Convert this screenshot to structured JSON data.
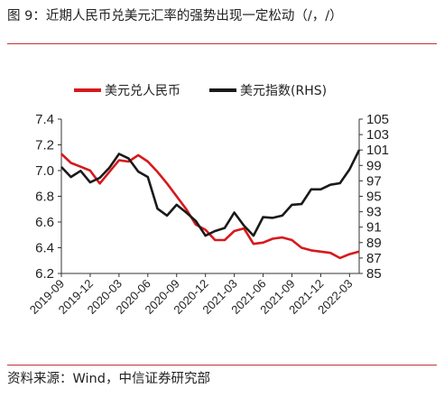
{
  "header": {
    "title": "图 9：近期人民币兑美元汇率的强势出现一定松动（/，/）"
  },
  "footer": {
    "source": "资料来源：Wind，中信证券研究部"
  },
  "colors": {
    "cny": "#d7191c",
    "dxy": "#1a1a1a",
    "rule": "#c0343c"
  },
  "chart_data": {
    "type": "line",
    "title": "",
    "legend_position": "top",
    "x_ticks": [
      "2019-09",
      "2019-12",
      "2020-03",
      "2020-06",
      "2020-09",
      "2020-12",
      "2021-03",
      "2021-06",
      "2021-09",
      "2021-12",
      "2022-03"
    ],
    "y_left": {
      "ticks": [
        "6.2",
        "6.4",
        "6.6",
        "6.8",
        "7.0",
        "7.2",
        "7.4"
      ],
      "range": [
        6.2,
        7.4
      ]
    },
    "y_right": {
      "ticks": [
        "85",
        "87",
        "89",
        "91",
        "93",
        "95",
        "97",
        "99",
        "101",
        "103",
        "105"
      ],
      "range": [
        85,
        105
      ],
      "label": "RHS"
    },
    "series": [
      {
        "name": "美元兑人民币",
        "axis": "left",
        "color": "#d7191c",
        "points": [
          [
            "2019-09",
            7.13
          ],
          [
            "2019-10",
            7.06
          ],
          [
            "2019-11",
            7.03
          ],
          [
            "2019-12",
            7.0
          ],
          [
            "2020-01",
            6.9
          ],
          [
            "2020-02",
            6.99
          ],
          [
            "2020-03",
            7.08
          ],
          [
            "2020-04",
            7.07
          ],
          [
            "2020-05",
            7.12
          ],
          [
            "2020-06",
            7.07
          ],
          [
            "2020-07",
            6.99
          ],
          [
            "2020-08",
            6.9
          ],
          [
            "2020-09",
            6.8
          ],
          [
            "2020-10",
            6.7
          ],
          [
            "2020-11",
            6.58
          ],
          [
            "2020-12",
            6.54
          ],
          [
            "2021-01",
            6.46
          ],
          [
            "2021-02",
            6.46
          ],
          [
            "2021-03",
            6.53
          ],
          [
            "2021-04",
            6.55
          ],
          [
            "2021-05",
            6.43
          ],
          [
            "2021-06",
            6.44
          ],
          [
            "2021-07",
            6.47
          ],
          [
            "2021-08",
            6.48
          ],
          [
            "2021-09",
            6.46
          ],
          [
            "2021-10",
            6.4
          ],
          [
            "2021-11",
            6.38
          ],
          [
            "2021-12",
            6.37
          ],
          [
            "2022-01",
            6.36
          ],
          [
            "2022-02",
            6.32
          ],
          [
            "2022-03",
            6.35
          ],
          [
            "2022-04",
            6.37
          ]
        ]
      },
      {
        "name": "美元指数(RHS)",
        "axis": "right",
        "color": "#1a1a1a",
        "points": [
          [
            "2019-09",
            98.8
          ],
          [
            "2019-10",
            97.5
          ],
          [
            "2019-11",
            98.3
          ],
          [
            "2019-12",
            96.8
          ],
          [
            "2020-01",
            97.4
          ],
          [
            "2020-02",
            98.7
          ],
          [
            "2020-03",
            100.5
          ],
          [
            "2020-04",
            99.9
          ],
          [
            "2020-05",
            98.2
          ],
          [
            "2020-06",
            97.5
          ],
          [
            "2020-07",
            93.4
          ],
          [
            "2020-08",
            92.5
          ],
          [
            "2020-09",
            93.9
          ],
          [
            "2020-10",
            92.9
          ],
          [
            "2020-11",
            91.8
          ],
          [
            "2020-12",
            89.9
          ],
          [
            "2021-01",
            90.5
          ],
          [
            "2021-02",
            90.9
          ],
          [
            "2021-03",
            92.9
          ],
          [
            "2021-04",
            91.2
          ],
          [
            "2021-05",
            89.9
          ],
          [
            "2021-06",
            92.3
          ],
          [
            "2021-07",
            92.2
          ],
          [
            "2021-08",
            92.5
          ],
          [
            "2021-09",
            93.9
          ],
          [
            "2021-10",
            94.0
          ],
          [
            "2021-11",
            95.9
          ],
          [
            "2021-12",
            95.9
          ],
          [
            "2022-01",
            96.5
          ],
          [
            "2022-02",
            96.7
          ],
          [
            "2022-03",
            98.5
          ],
          [
            "2022-04",
            101.0
          ]
        ]
      }
    ]
  }
}
